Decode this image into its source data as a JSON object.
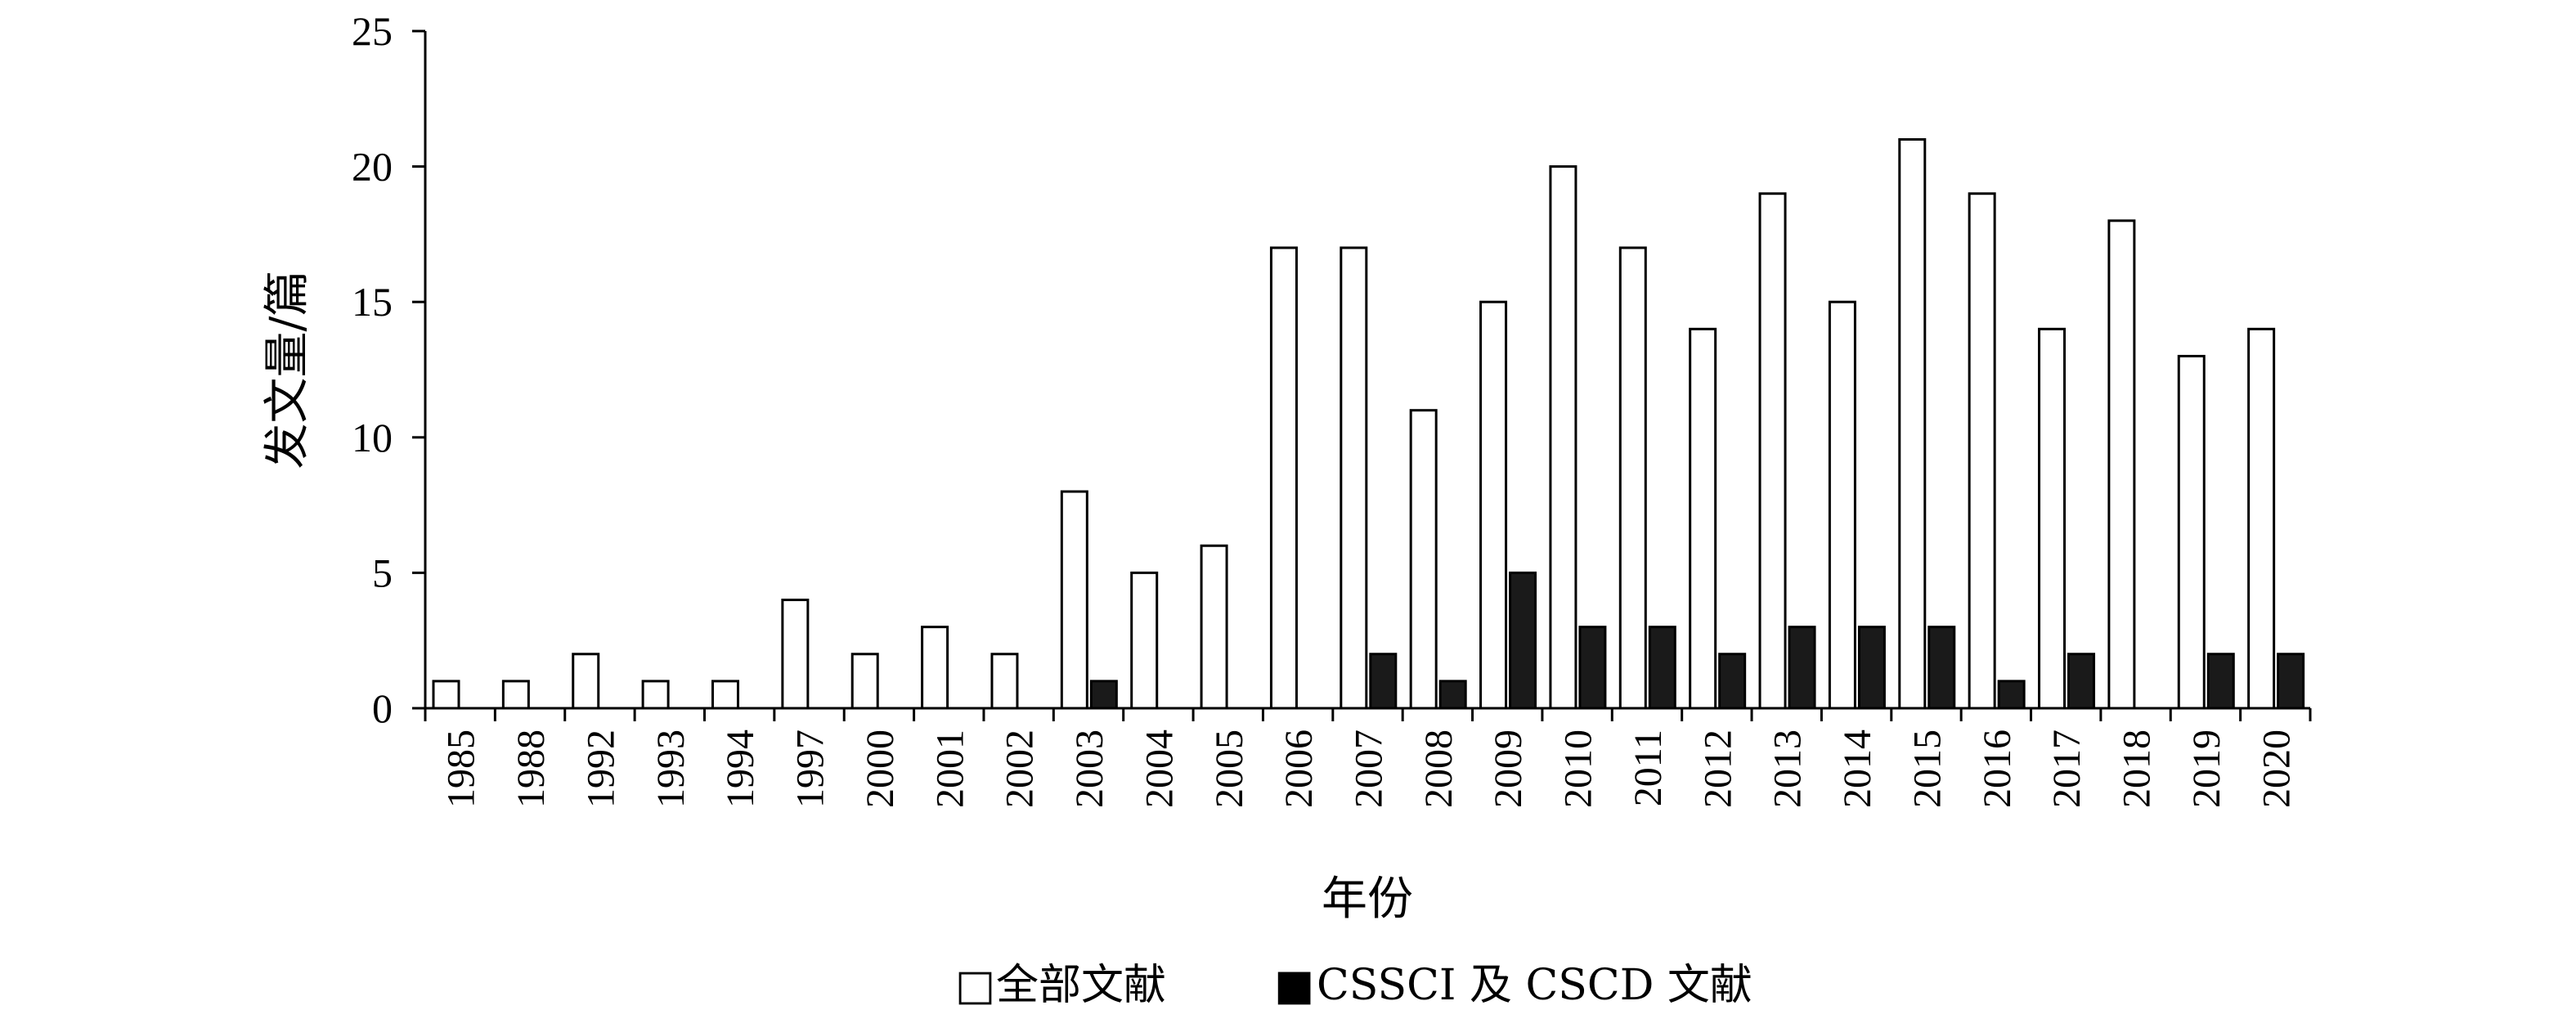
{
  "chart_data": {
    "type": "bar",
    "title": "",
    "xlabel": "年份",
    "ylabel": "发文量/篇",
    "ylim": [
      0,
      25
    ],
    "yticks": [
      "0",
      "5",
      "10",
      "15",
      "20",
      "25"
    ],
    "grid": false,
    "legend_position": "bottom",
    "categories": [
      "1985",
      "1988",
      "1992",
      "1993",
      "1994",
      "1997",
      "2000",
      "2001",
      "2002",
      "2003",
      "2004",
      "2005",
      "2006",
      "2007",
      "2008",
      "2009",
      "2010",
      "2011",
      "2012",
      "2013",
      "2014",
      "2015",
      "2016",
      "2017",
      "2018",
      "2019",
      "2020"
    ],
    "series": [
      {
        "name": "全部文献",
        "color": "#ffffff",
        "values": [
          1,
          1,
          2,
          1,
          1,
          4,
          2,
          3,
          2,
          8,
          5,
          6,
          17,
          17,
          11,
          15,
          20,
          17,
          14,
          19,
          15,
          21,
          19,
          14,
          18,
          13,
          14
        ]
      },
      {
        "name": "CSSCI 及 CSCD 文献",
        "color": "#1a1a1a",
        "values": [
          0,
          0,
          0,
          0,
          0,
          0,
          0,
          0,
          0,
          1,
          0,
          0,
          0,
          2,
          1,
          5,
          3,
          3,
          2,
          3,
          3,
          3,
          1,
          2,
          0,
          2,
          2
        ]
      }
    ],
    "legend": {
      "marker_all": "□",
      "marker_core": "■"
    }
  }
}
